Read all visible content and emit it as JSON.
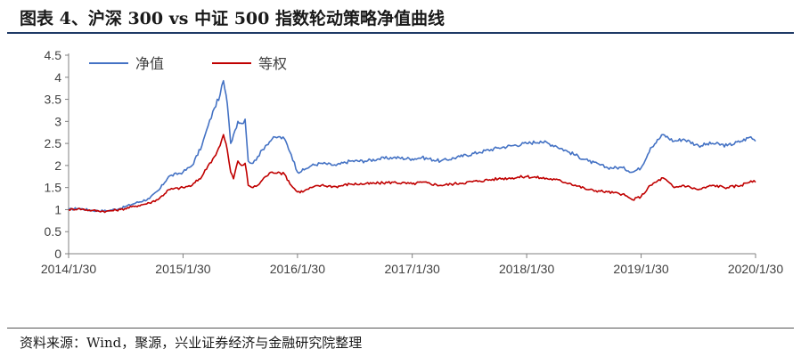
{
  "header": {
    "title": "图表 4、沪深 300 vs  中证 500 指数轮动策略净值曲线"
  },
  "footer": {
    "source": "资料来源：Wind，聚源，兴业证券经济与金融研究院整理"
  },
  "colors": {
    "series_1": "#4472C4",
    "series_2": "#C00000",
    "axis": "#808080",
    "text": "#404040"
  },
  "chart_data": {
    "type": "line",
    "title": "",
    "xlabel": "",
    "ylabel": "",
    "ylim": [
      0,
      4.5
    ],
    "yticks": [
      "0",
      "0.5",
      "1",
      "1.5",
      "2",
      "2.5",
      "3",
      "3.5",
      "4",
      "4.5"
    ],
    "xlim": [
      "2014-01-30",
      "2020-01-30"
    ],
    "xticks": [
      "2014/1/30",
      "2015/1/30",
      "2016/1/30",
      "2017/1/30",
      "2018/1/30",
      "2019/1/30",
      "2020/1/30"
    ],
    "grid": false,
    "legend_position": "top-left",
    "series": [
      {
        "name": "净值",
        "color": "#4472C4",
        "points": [
          [
            "2014-01-30",
            1.0
          ],
          [
            "2014-03-01",
            1.03
          ],
          [
            "2014-04-15",
            0.98
          ],
          [
            "2014-05-30",
            0.97
          ],
          [
            "2014-07-15",
            1.03
          ],
          [
            "2014-09-01",
            1.15
          ],
          [
            "2014-10-15",
            1.25
          ],
          [
            "2014-11-15",
            1.45
          ],
          [
            "2014-12-15",
            1.75
          ],
          [
            "2015-01-30",
            1.85
          ],
          [
            "2015-02-28",
            2.0
          ],
          [
            "2015-03-31",
            2.45
          ],
          [
            "2015-04-20",
            2.9
          ],
          [
            "2015-05-10",
            3.3
          ],
          [
            "2015-05-28",
            3.6
          ],
          [
            "2015-06-08",
            3.92
          ],
          [
            "2015-06-20",
            3.4
          ],
          [
            "2015-07-01",
            2.5
          ],
          [
            "2015-07-10",
            2.7
          ],
          [
            "2015-07-24",
            3.0
          ],
          [
            "2015-08-05",
            2.95
          ],
          [
            "2015-08-16",
            3.05
          ],
          [
            "2015-08-26",
            2.1
          ],
          [
            "2015-09-10",
            2.05
          ],
          [
            "2015-09-25",
            2.2
          ],
          [
            "2015-10-20",
            2.45
          ],
          [
            "2015-11-10",
            2.6
          ],
          [
            "2015-11-30",
            2.65
          ],
          [
            "2015-12-20",
            2.6
          ],
          [
            "2016-01-10",
            2.25
          ],
          [
            "2016-01-30",
            1.85
          ],
          [
            "2016-02-20",
            1.9
          ],
          [
            "2016-03-15",
            2.0
          ],
          [
            "2016-04-15",
            2.05
          ],
          [
            "2016-06-01",
            2.0
          ],
          [
            "2016-07-15",
            2.1
          ],
          [
            "2016-09-01",
            2.1
          ],
          [
            "2016-10-15",
            2.15
          ],
          [
            "2016-12-01",
            2.18
          ],
          [
            "2017-01-30",
            2.15
          ],
          [
            "2017-03-01",
            2.18
          ],
          [
            "2017-05-01",
            2.1
          ],
          [
            "2017-07-01",
            2.2
          ],
          [
            "2017-09-01",
            2.3
          ],
          [
            "2017-11-01",
            2.4
          ],
          [
            "2017-12-15",
            2.45
          ],
          [
            "2018-01-30",
            2.5
          ],
          [
            "2018-03-15",
            2.55
          ],
          [
            "2018-05-01",
            2.45
          ],
          [
            "2018-06-15",
            2.3
          ],
          [
            "2018-08-15",
            2.1
          ],
          [
            "2018-10-15",
            1.95
          ],
          [
            "2018-12-01",
            1.95
          ],
          [
            "2019-01-03",
            1.85
          ],
          [
            "2019-01-30",
            1.95
          ],
          [
            "2019-03-01",
            2.4
          ],
          [
            "2019-04-10",
            2.7
          ],
          [
            "2019-05-15",
            2.55
          ],
          [
            "2019-06-15",
            2.6
          ],
          [
            "2019-08-01",
            2.45
          ],
          [
            "2019-09-15",
            2.5
          ],
          [
            "2019-11-01",
            2.45
          ],
          [
            "2019-12-15",
            2.55
          ],
          [
            "2020-01-15",
            2.65
          ],
          [
            "2020-01-30",
            2.55
          ]
        ]
      },
      {
        "name": "等权",
        "color": "#C00000",
        "points": [
          [
            "2014-01-30",
            1.0
          ],
          [
            "2014-03-01",
            1.02
          ],
          [
            "2014-04-15",
            0.98
          ],
          [
            "2014-05-30",
            0.96
          ],
          [
            "2014-07-15",
            1.0
          ],
          [
            "2014-09-01",
            1.08
          ],
          [
            "2014-10-15",
            1.15
          ],
          [
            "2014-11-15",
            1.25
          ],
          [
            "2014-12-15",
            1.45
          ],
          [
            "2015-01-30",
            1.5
          ],
          [
            "2015-02-28",
            1.55
          ],
          [
            "2015-03-31",
            1.75
          ],
          [
            "2015-04-20",
            2.0
          ],
          [
            "2015-05-10",
            2.2
          ],
          [
            "2015-05-28",
            2.45
          ],
          [
            "2015-06-08",
            2.7
          ],
          [
            "2015-06-20",
            2.35
          ],
          [
            "2015-07-01",
            1.85
          ],
          [
            "2015-07-10",
            1.7
          ],
          [
            "2015-07-24",
            2.1
          ],
          [
            "2015-08-05",
            2.0
          ],
          [
            "2015-08-16",
            2.05
          ],
          [
            "2015-08-26",
            1.55
          ],
          [
            "2015-09-10",
            1.5
          ],
          [
            "2015-09-25",
            1.55
          ],
          [
            "2015-10-20",
            1.75
          ],
          [
            "2015-11-10",
            1.85
          ],
          [
            "2015-11-30",
            1.85
          ],
          [
            "2015-12-20",
            1.8
          ],
          [
            "2016-01-10",
            1.55
          ],
          [
            "2016-01-30",
            1.4
          ],
          [
            "2016-02-20",
            1.42
          ],
          [
            "2016-03-15",
            1.5
          ],
          [
            "2016-04-15",
            1.55
          ],
          [
            "2016-06-01",
            1.52
          ],
          [
            "2016-07-15",
            1.58
          ],
          [
            "2016-09-01",
            1.58
          ],
          [
            "2016-10-15",
            1.6
          ],
          [
            "2016-12-01",
            1.62
          ],
          [
            "2017-01-30",
            1.58
          ],
          [
            "2017-03-01",
            1.62
          ],
          [
            "2017-05-01",
            1.55
          ],
          [
            "2017-07-01",
            1.6
          ],
          [
            "2017-09-01",
            1.65
          ],
          [
            "2017-11-01",
            1.7
          ],
          [
            "2017-12-15",
            1.72
          ],
          [
            "2018-01-30",
            1.75
          ],
          [
            "2018-03-15",
            1.72
          ],
          [
            "2018-05-01",
            1.68
          ],
          [
            "2018-06-15",
            1.6
          ],
          [
            "2018-08-15",
            1.45
          ],
          [
            "2018-10-15",
            1.4
          ],
          [
            "2018-12-01",
            1.35
          ],
          [
            "2019-01-03",
            1.22
          ],
          [
            "2019-01-30",
            1.3
          ],
          [
            "2019-03-01",
            1.55
          ],
          [
            "2019-04-10",
            1.72
          ],
          [
            "2019-05-15",
            1.5
          ],
          [
            "2019-06-15",
            1.55
          ],
          [
            "2019-08-01",
            1.45
          ],
          [
            "2019-09-15",
            1.55
          ],
          [
            "2019-11-01",
            1.5
          ],
          [
            "2019-12-15",
            1.55
          ],
          [
            "2020-01-15",
            1.65
          ],
          [
            "2020-01-30",
            1.62
          ]
        ]
      }
    ]
  }
}
